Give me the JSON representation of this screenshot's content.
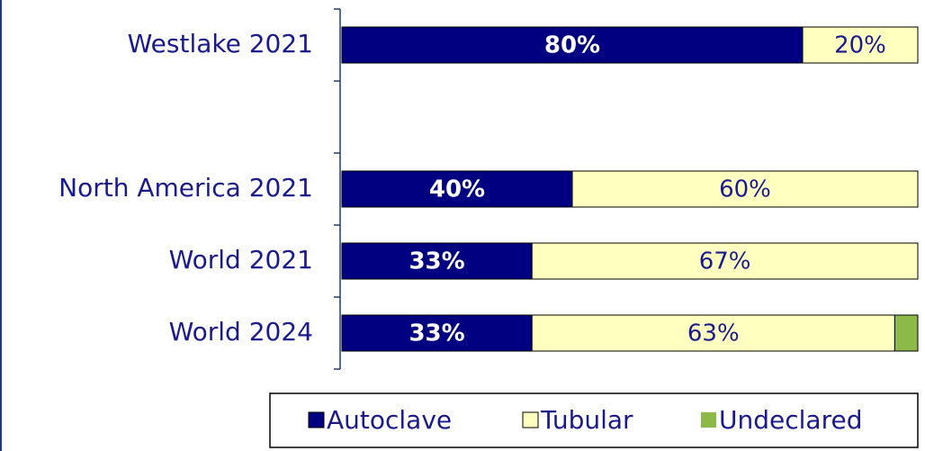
{
  "chart_data": {
    "type": "stacked-barh",
    "categories": [
      "Westlake 2021",
      null,
      "North America 2021",
      "World 2021",
      "World 2024"
    ],
    "series": [
      {
        "name": "Autoclave",
        "color": "#000080",
        "values": [
          80,
          null,
          40,
          33,
          33
        ],
        "value_labels": [
          "80%",
          null,
          "40%",
          "33%",
          "33%"
        ]
      },
      {
        "name": "Tubular",
        "color": "#ffffc0",
        "values": [
          20,
          null,
          60,
          67,
          63
        ],
        "value_labels": [
          "20%",
          null,
          "60%",
          "67%",
          "63%"
        ]
      },
      {
        "name": "Undeclared",
        "color": "#8db84a",
        "values": [
          null,
          null,
          null,
          null,
          4
        ]
      }
    ],
    "xlim": [
      0,
      100
    ],
    "legend": "bottom-right"
  }
}
